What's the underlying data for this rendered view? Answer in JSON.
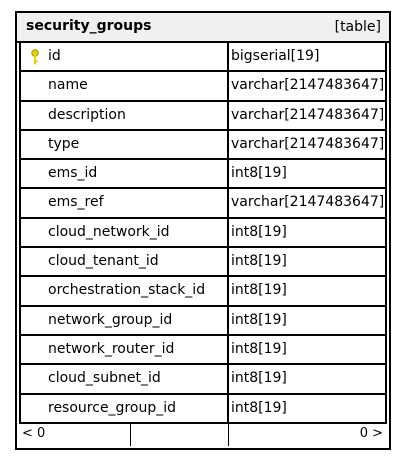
{
  "entity": {
    "name": "security_groups",
    "kind": "[table]"
  },
  "columns": [
    {
      "name": "id",
      "type": "bigserial[19]",
      "primary_key": true
    },
    {
      "name": "name",
      "type": "varchar[2147483647]",
      "primary_key": false
    },
    {
      "name": "description",
      "type": "varchar[2147483647]",
      "primary_key": false
    },
    {
      "name": "type",
      "type": "varchar[2147483647]",
      "primary_key": false
    },
    {
      "name": "ems_id",
      "type": "int8[19]",
      "primary_key": false
    },
    {
      "name": "ems_ref",
      "type": "varchar[2147483647]",
      "primary_key": false
    },
    {
      "name": "cloud_network_id",
      "type": "int8[19]",
      "primary_key": false
    },
    {
      "name": "cloud_tenant_id",
      "type": "int8[19]",
      "primary_key": false
    },
    {
      "name": "orchestration_stack_id",
      "type": "int8[19]",
      "primary_key": false
    },
    {
      "name": "network_group_id",
      "type": "int8[19]",
      "primary_key": false
    },
    {
      "name": "network_router_id",
      "type": "int8[19]",
      "primary_key": false
    },
    {
      "name": "cloud_subnet_id",
      "type": "int8[19]",
      "primary_key": false
    },
    {
      "name": "resource_group_id",
      "type": "int8[19]",
      "primary_key": false
    }
  ],
  "footer": {
    "left_label": "< 0",
    "right_label": "0 >"
  },
  "colors": {
    "header_bg": "#f0f0f0",
    "border": "#000000",
    "key_icon": "#e8d100"
  },
  "icons": {
    "primary_key": "key-icon"
  }
}
